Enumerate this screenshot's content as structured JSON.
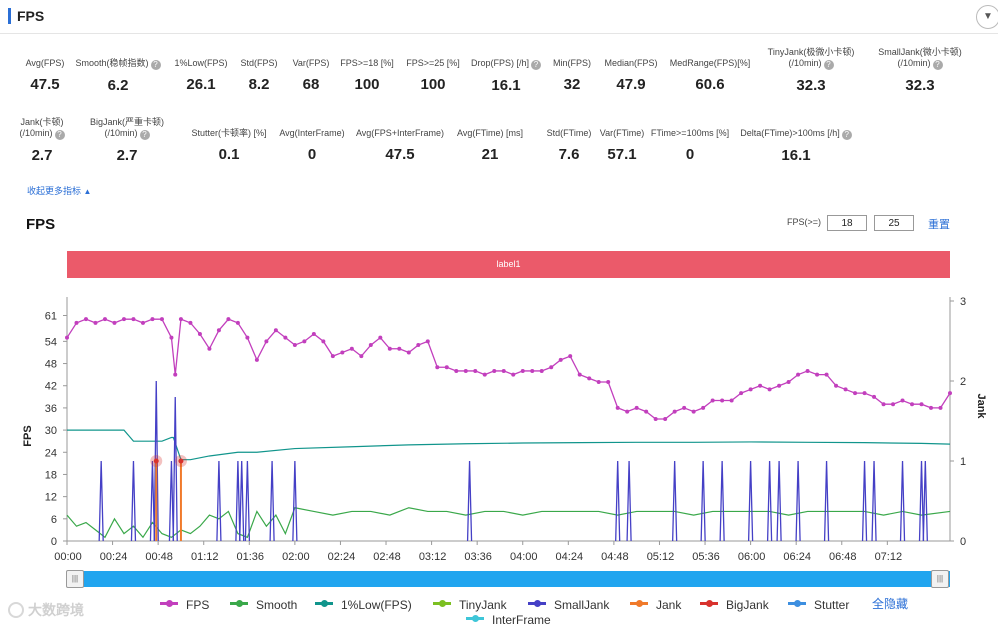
{
  "header": {
    "title": "FPS"
  },
  "metrics": [
    {
      "label": "Avg(FPS)",
      "value": "47.5",
      "help": false
    },
    {
      "label": "Smooth(稳帧指数)",
      "value": "6.2",
      "help": true
    },
    {
      "label": "1%Low(FPS)",
      "value": "26.1",
      "help": false
    },
    {
      "label": "Std(FPS)",
      "value": "8.2",
      "help": false
    },
    {
      "label": "Var(FPS)",
      "value": "68",
      "help": false
    },
    {
      "label": "FPS>=18 [%]",
      "value": "100",
      "help": false
    },
    {
      "label": "FPS>=25 [%]",
      "value": "100",
      "help": false
    },
    {
      "label": "Drop(FPS) [/h]",
      "value": "16.1",
      "help": true
    },
    {
      "label": "Min(FPS)",
      "value": "32",
      "help": false
    },
    {
      "label": "Median(FPS)",
      "value": "47.9",
      "help": false
    },
    {
      "label": "MedRange(FPS)[%]",
      "value": "60.6",
      "help": false
    },
    {
      "label": "TinyJank(极微小卡顿)|(/10min)",
      "value": "32.3",
      "help": true
    },
    {
      "label": "SmallJank(微小卡顿)|(/10min)",
      "value": "32.3",
      "help": true
    },
    {
      "label": "Jank(卡顿)|(/10min)",
      "value": "2.7",
      "help": true
    },
    {
      "label": "BigJank(严重卡顿)|(/10min)",
      "value": "2.7",
      "help": true
    },
    {
      "label": "Stutter(卡顿率) [%]",
      "value": "0.1",
      "help": false
    },
    {
      "label": "Avg(InterFrame)",
      "value": "0",
      "help": false
    },
    {
      "label": "Avg(FPS+InterFrame)",
      "value": "47.5",
      "help": false
    },
    {
      "label": "Avg(FTime) [ms]",
      "value": "21",
      "help": false
    },
    {
      "label": "Std(FTime)",
      "value": "7.6",
      "help": false
    },
    {
      "label": "Var(FTime)",
      "value": "57.1",
      "help": false
    },
    {
      "label": "FTime>=100ms [%]",
      "value": "0",
      "help": false
    },
    {
      "label": "Delta(FTime)>100ms [/h]",
      "value": "16.1",
      "help": true
    }
  ],
  "more_link": "收起更多指标",
  "chart_section": {
    "title": "FPS",
    "filter_label": "FPS(>=)",
    "filter_values": [
      "18",
      "25"
    ],
    "reset_label": "重置",
    "band_label": "label1"
  },
  "legend": {
    "items": [
      {
        "name": "FPS",
        "color": "#c23fbd"
      },
      {
        "name": "Smooth",
        "color": "#3aa84a"
      },
      {
        "name": "1%Low(FPS)",
        "color": "#11958c"
      },
      {
        "name": "TinyJank",
        "color": "#7cc022"
      },
      {
        "name": "SmallJank",
        "color": "#4540c6"
      },
      {
        "name": "Jank",
        "color": "#f07a2a"
      },
      {
        "name": "BigJank",
        "color": "#d8322d"
      },
      {
        "name": "Stutter",
        "color": "#3d8fe0"
      },
      {
        "name": "InterFrame",
        "color": "#3ec6d8"
      }
    ],
    "toggle_label": "全隐藏"
  },
  "watermark": {
    "text": "大数跨境"
  },
  "chart_data": {
    "type": "line",
    "title": "FPS",
    "ylabel": "FPS",
    "y2label": "Jank",
    "x_unit": "seconds",
    "xlim": [
      0,
      465
    ],
    "ylim": [
      0,
      66
    ],
    "y2lim": [
      0,
      3
    ],
    "yticks": [
      0,
      6,
      12,
      18,
      24,
      30,
      36,
      42,
      48,
      54,
      61
    ],
    "y2ticks": [
      0,
      1,
      2,
      3
    ],
    "xtick_labels": [
      "00:00",
      "00:24",
      "00:48",
      "01:12",
      "01:36",
      "02:00",
      "02:24",
      "02:48",
      "03:12",
      "03:36",
      "04:00",
      "04:24",
      "04:48",
      "05:12",
      "05:36",
      "06:00",
      "06:24",
      "06:48",
      "07:12"
    ],
    "xtick_values": [
      0,
      24,
      48,
      72,
      96,
      120,
      144,
      168,
      192,
      216,
      240,
      264,
      288,
      312,
      336,
      360,
      384,
      408,
      432
    ],
    "series": [
      {
        "name": "FPS",
        "axis": "left",
        "x": [
          0,
          5,
          10,
          15,
          20,
          25,
          30,
          35,
          40,
          45,
          50,
          55,
          57,
          60,
          65,
          70,
          75,
          80,
          85,
          90,
          95,
          100,
          105,
          110,
          115,
          120,
          125,
          130,
          135,
          140,
          145,
          150,
          155,
          160,
          165,
          170,
          175,
          180,
          185,
          190,
          195,
          200,
          205,
          210,
          215,
          220,
          225,
          230,
          235,
          240,
          245,
          250,
          255,
          260,
          265,
          270,
          275,
          280,
          285,
          290,
          295,
          300,
          305,
          310,
          315,
          320,
          325,
          330,
          335,
          340,
          345,
          350,
          355,
          360,
          365,
          370,
          375,
          380,
          385,
          390,
          395,
          400,
          405,
          410,
          415,
          420,
          425,
          430,
          435,
          440,
          445,
          450,
          455,
          460,
          465
        ],
        "values": [
          55,
          59,
          60,
          59,
          60,
          59,
          60,
          60,
          59,
          60,
          60,
          55,
          45,
          60,
          59,
          56,
          52,
          57,
          60,
          59,
          55,
          49,
          54,
          57,
          55,
          53,
          54,
          56,
          54,
          50,
          51,
          52,
          50,
          53,
          55,
          52,
          52,
          51,
          53,
          54,
          47,
          47,
          46,
          46,
          46,
          45,
          46,
          46,
          45,
          46,
          46,
          46,
          47,
          49,
          50,
          45,
          44,
          43,
          43,
          36,
          35,
          36,
          35,
          33,
          33,
          35,
          36,
          35,
          36,
          38,
          38,
          38,
          40,
          41,
          42,
          41,
          42,
          43,
          45,
          46,
          45,
          45,
          42,
          41,
          40,
          40,
          39,
          37,
          37,
          38,
          37,
          37,
          36,
          36,
          40
        ]
      },
      {
        "name": "1%Low(FPS)",
        "axis": "left",
        "x": [
          0,
          10,
          15,
          20,
          30,
          35,
          40,
          45,
          50,
          55,
          56,
          60,
          65,
          75,
          90,
          100,
          120,
          150,
          180,
          210,
          240,
          270,
          300,
          330,
          360,
          390,
          420,
          450,
          465
        ],
        "values": [
          30,
          30,
          30,
          30,
          30,
          27,
          27,
          27,
          27,
          28,
          28,
          22,
          22,
          23,
          24,
          24,
          25,
          25.5,
          26,
          26.3,
          26.5,
          26.6,
          26.7,
          26.7,
          26.8,
          26.7,
          26.6,
          26.4,
          26.2
        ]
      },
      {
        "name": "Smooth",
        "axis": "left",
        "x": [
          0,
          5,
          10,
          15,
          20,
          25,
          30,
          35,
          40,
          45,
          50,
          55,
          60,
          65,
          70,
          75,
          80,
          85,
          90,
          95,
          100,
          105,
          110,
          115,
          120,
          130,
          140,
          150,
          160,
          170,
          180,
          190,
          200,
          210,
          220,
          230,
          240,
          250,
          260,
          270,
          280,
          290,
          300,
          310,
          320,
          330,
          340,
          350,
          360,
          370,
          380,
          390,
          400,
          410,
          420,
          430,
          440,
          450,
          465
        ],
        "values": [
          7,
          4,
          5,
          3,
          1,
          6,
          2,
          4,
          1,
          5,
          2,
          1,
          3,
          2,
          4,
          7,
          6,
          8,
          2,
          1,
          8,
          4,
          7,
          2,
          9,
          8,
          7,
          8,
          8,
          7,
          9,
          8,
          8,
          7,
          8,
          8,
          7,
          8,
          8,
          8,
          8,
          7,
          8,
          8,
          8,
          7,
          8,
          8,
          8,
          8,
          7,
          8,
          8,
          8,
          8,
          7,
          8,
          7,
          8
        ]
      },
      {
        "name": "SmallJank",
        "axis": "right",
        "x": [
          18,
          35,
          45,
          55,
          80,
          90,
          92,
          95,
          108,
          120,
          212,
          290,
          296,
          320,
          335,
          345,
          360,
          370,
          375,
          385,
          400,
          420,
          425,
          440,
          450,
          452
        ],
        "values": [
          1,
          1,
          1,
          1,
          1,
          1,
          1,
          1,
          1,
          1,
          1,
          1,
          1,
          1,
          1,
          1,
          1,
          1,
          1,
          1,
          1,
          1,
          1,
          1,
          1,
          1
        ]
      },
      {
        "name": "Jank",
        "axis": "right",
        "x": [
          47,
          60
        ],
        "values": [
          1,
          1
        ]
      },
      {
        "name": "BigJank",
        "axis": "right",
        "x": [
          47,
          60
        ],
        "values": [
          1,
          1
        ]
      }
    ]
  }
}
